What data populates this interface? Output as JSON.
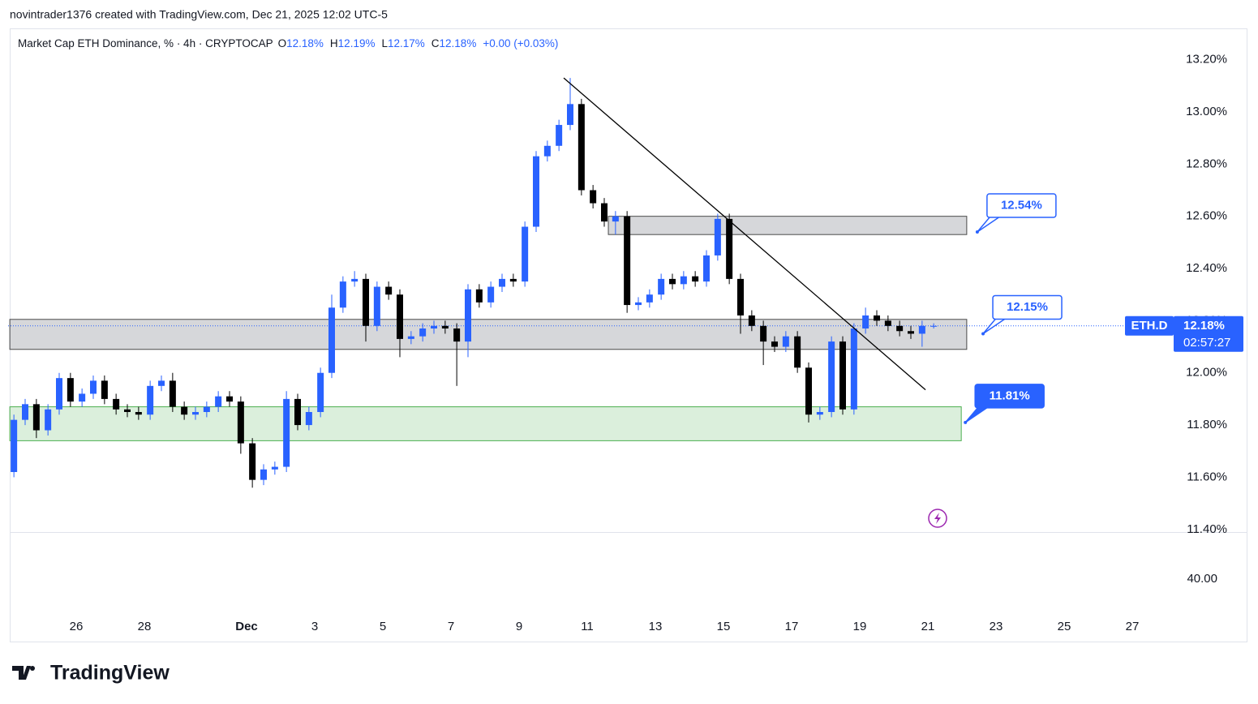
{
  "header": {
    "credit": "novintrader1376 created with TradingView.com, Dec 21, 2025 12:02 UTC-5"
  },
  "footer": {
    "logo_text": "TradingView"
  },
  "chart_data": {
    "type": "candlestick",
    "legend": {
      "title": "Market Cap ETH Dominance, % · 4h · CRYPTOCAP",
      "ohlc": [
        {
          "key": "O",
          "value": "12.18%"
        },
        {
          "key": "H",
          "value": "12.19%"
        },
        {
          "key": "L",
          "value": "12.17%"
        },
        {
          "key": "C",
          "value": "12.18%"
        }
      ],
      "change": "+0.00 (+0.03%)"
    },
    "up_color": "#2962ff",
    "down_color": "#000000",
    "x": [
      24.17,
      24.5,
      24.83,
      25.17,
      25.5,
      25.83,
      26.17,
      26.5,
      26.83,
      27.17,
      27.5,
      27.83,
      28.17,
      28.5,
      28.83,
      29.17,
      29.5,
      29.83,
      30.17,
      30.5,
      30.83,
      31.17,
      31.5,
      31.83,
      32.17,
      32.5,
      32.83,
      33.17,
      33.5,
      33.83,
      34.17,
      34.5,
      34.83,
      35.17,
      35.5,
      35.83,
      36.17,
      36.5,
      36.83,
      37.17,
      37.5,
      37.83,
      38.17,
      38.5,
      38.83,
      39.17,
      39.5,
      39.83,
      40.17,
      40.5,
      40.83,
      41.17,
      41.5,
      41.83,
      42.17,
      42.5,
      42.83,
      43.17,
      43.5,
      43.83,
      44.17,
      44.5,
      44.83,
      45.17,
      45.5,
      45.83,
      46.17,
      46.5,
      46.83,
      47.17,
      47.5,
      47.83,
      48.17,
      48.5,
      48.83,
      49.17,
      49.5,
      49.83,
      50.17,
      50.5,
      50.83,
      51.17
    ],
    "open": [
      11.62,
      11.82,
      11.88,
      11.78,
      11.86,
      11.98,
      11.89,
      11.92,
      11.97,
      11.9,
      11.86,
      11.85,
      11.84,
      11.95,
      11.97,
      11.87,
      11.84,
      11.85,
      11.87,
      11.91,
      11.89,
      11.73,
      11.59,
      11.63,
      11.64,
      11.9,
      11.8,
      11.85,
      12.0,
      12.25,
      12.35,
      12.36,
      12.18,
      12.33,
      12.3,
      12.13,
      12.14,
      12.17,
      12.18,
      12.17,
      12.12,
      12.32,
      12.27,
      12.33,
      12.36,
      12.35,
      12.56,
      12.83,
      12.87,
      12.95,
      13.03,
      12.7,
      12.65,
      12.58,
      12.6,
      12.26,
      12.27,
      12.3,
      12.36,
      12.34,
      12.37,
      12.35,
      12.45,
      12.59,
      12.36,
      12.22,
      12.18,
      12.12,
      12.1,
      12.14,
      12.02,
      11.84,
      11.85,
      12.12,
      11.86,
      12.17,
      12.22,
      12.2,
      12.18,
      12.16,
      12.15,
      12.18
    ],
    "high": [
      11.84,
      11.9,
      11.9,
      11.88,
      12.0,
      12.0,
      11.94,
      11.99,
      11.99,
      11.92,
      11.88,
      11.87,
      11.97,
      11.99,
      12.0,
      11.89,
      11.87,
      11.89,
      11.93,
      11.93,
      11.91,
      11.75,
      11.65,
      11.66,
      11.93,
      11.92,
      11.87,
      12.02,
      12.3,
      12.37,
      12.39,
      12.38,
      12.35,
      12.35,
      12.32,
      12.16,
      12.19,
      12.2,
      12.2,
      12.19,
      12.34,
      12.34,
      12.35,
      12.38,
      12.38,
      12.58,
      12.85,
      12.89,
      12.97,
      13.13,
      13.05,
      12.72,
      12.67,
      12.62,
      12.62,
      12.29,
      12.32,
      12.38,
      12.38,
      12.39,
      12.39,
      12.47,
      12.61,
      12.61,
      12.38,
      12.24,
      12.2,
      12.14,
      12.16,
      12.16,
      12.04,
      11.87,
      12.14,
      12.14,
      12.19,
      12.25,
      12.24,
      12.22,
      12.2,
      12.18,
      12.2,
      12.19
    ],
    "low": [
      11.6,
      11.8,
      11.75,
      11.76,
      11.84,
      11.87,
      11.87,
      11.9,
      11.88,
      11.84,
      11.83,
      11.82,
      11.82,
      11.93,
      11.85,
      11.82,
      11.82,
      11.83,
      11.85,
      11.87,
      11.69,
      11.56,
      11.57,
      11.61,
      11.62,
      11.78,
      11.78,
      11.83,
      11.98,
      12.23,
      12.33,
      12.12,
      12.16,
      12.28,
      12.06,
      12.11,
      12.12,
      12.15,
      12.15,
      11.95,
      12.06,
      12.25,
      12.25,
      12.31,
      12.33,
      12.33,
      12.54,
      12.81,
      12.85,
      12.93,
      12.68,
      12.63,
      12.56,
      12.53,
      12.23,
      12.24,
      12.25,
      12.28,
      12.32,
      12.32,
      12.33,
      12.33,
      12.43,
      12.34,
      12.15,
      12.16,
      12.03,
      12.08,
      12.08,
      12.0,
      11.81,
      11.82,
      11.83,
      11.84,
      11.84,
      12.15,
      12.18,
      12.16,
      12.14,
      12.13,
      12.1,
      12.17
    ],
    "close": [
      11.82,
      11.88,
      11.78,
      11.86,
      11.98,
      11.89,
      11.92,
      11.97,
      11.9,
      11.86,
      11.85,
      11.84,
      11.95,
      11.97,
      11.87,
      11.84,
      11.85,
      11.87,
      11.91,
      11.89,
      11.73,
      11.59,
      11.63,
      11.64,
      11.9,
      11.8,
      11.85,
      12.0,
      12.25,
      12.35,
      12.36,
      12.18,
      12.33,
      12.3,
      12.13,
      12.14,
      12.17,
      12.18,
      12.17,
      12.12,
      12.32,
      12.27,
      12.33,
      12.36,
      12.35,
      12.56,
      12.83,
      12.87,
      12.95,
      13.03,
      12.7,
      12.65,
      12.58,
      12.6,
      12.26,
      12.27,
      12.3,
      12.36,
      12.34,
      12.37,
      12.35,
      12.45,
      12.59,
      12.36,
      12.22,
      12.18,
      12.12,
      12.1,
      12.14,
      12.02,
      11.84,
      11.85,
      12.12,
      11.86,
      12.17,
      12.22,
      12.2,
      12.18,
      12.16,
      12.15,
      12.18,
      12.18
    ],
    "xlim": [
      24,
      58
    ],
    "xticks": [
      26,
      28,
      {
        "value": 31,
        "label": "Dec"
      },
      {
        "value": 33,
        "label": "3"
      },
      {
        "value": 35,
        "label": "5"
      },
      {
        "value": 37,
        "label": "7"
      },
      {
        "value": 39,
        "label": "9"
      },
      {
        "value": 41,
        "label": "11"
      },
      {
        "value": 43,
        "label": "13"
      },
      {
        "value": 45,
        "label": "15"
      },
      {
        "value": 47,
        "label": "17"
      },
      {
        "value": 49,
        "label": "19"
      },
      {
        "value": 51,
        "label": "21"
      },
      {
        "value": 53,
        "label": "23"
      },
      {
        "value": 55,
        "label": "25"
      },
      {
        "value": 57,
        "label": "27"
      }
    ],
    "ylim": [
      11.39,
      13.32
    ],
    "yticks": [
      {
        "value": 13.2,
        "label": "13.20%"
      },
      {
        "value": 13.0,
        "label": "13.00%"
      },
      {
        "value": 12.8,
        "label": "12.80%"
      },
      {
        "value": 12.6,
        "label": "12.60%"
      },
      {
        "value": 12.4,
        "label": "12.40%"
      },
      {
        "value": 12.2,
        "label": "12.20%"
      },
      {
        "value": 12.0,
        "label": "12.00%"
      },
      {
        "value": 11.8,
        "label": "11.80%"
      },
      {
        "value": 11.6,
        "label": "11.60%"
      },
      {
        "value": 11.4,
        "label": "11.40%"
      }
    ],
    "lower_pane": {
      "yticks": [
        {
          "value": 40,
          "label": "40.00"
        }
      ]
    },
    "zones": [
      {
        "x": [
          41.62,
          52.14
        ],
        "y": [
          12.53,
          12.6
        ],
        "color": "rgba(120,123,134,0.3)",
        "border": "#4a4a4a"
      },
      {
        "x": [
          24.05,
          52.14
        ],
        "y": [
          12.09,
          12.205
        ],
        "color": "rgba(120,123,134,0.3)",
        "border": "#4a4a4a"
      },
      {
        "x": [
          24.05,
          51.98
        ],
        "y": [
          11.74,
          11.87
        ],
        "color": "rgba(76,175,80,0.2)",
        "border": "#4caf50"
      }
    ],
    "trendline": {
      "x": [
        40.31,
        50.93
      ],
      "y": [
        13.13,
        11.935
      ],
      "color": "#000000"
    },
    "callouts": [
      {
        "label": "12.54%",
        "value": 12.54,
        "x": 52.45,
        "filled": false
      },
      {
        "label": "12.15%",
        "value": 12.15,
        "x": 52.62,
        "filled": false
      },
      {
        "label": "11.81%",
        "value": 11.81,
        "x": 52.1,
        "filled": true
      }
    ],
    "price_tag": {
      "symbol": "ETH.D",
      "value": 12.18,
      "label": "12.18%",
      "countdown": "02:57:27"
    }
  }
}
